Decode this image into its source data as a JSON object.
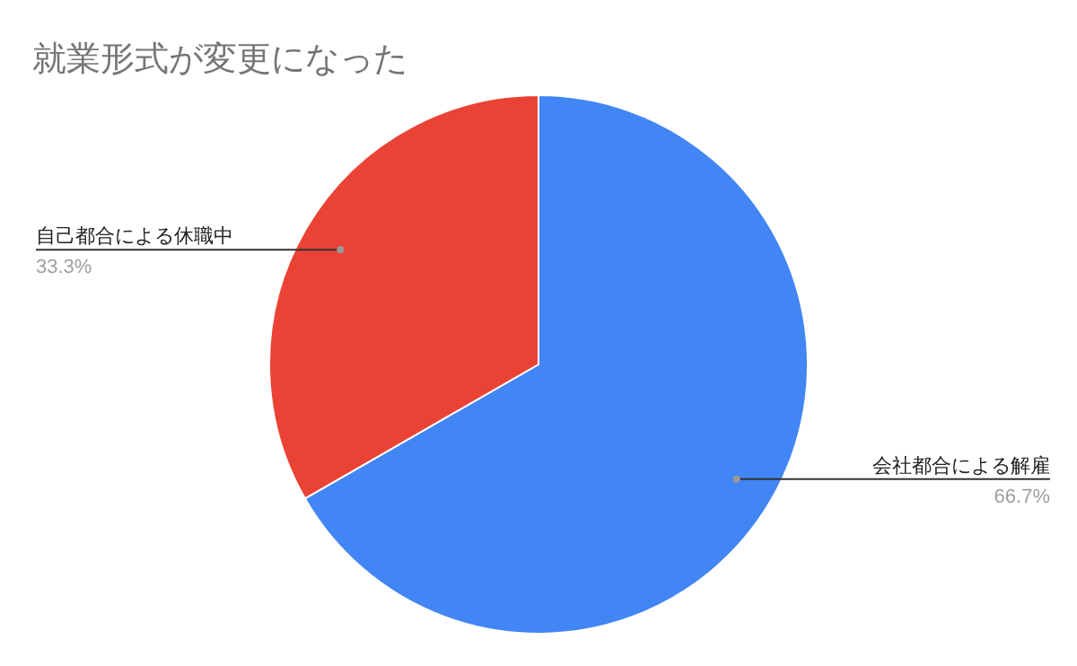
{
  "chart_data": {
    "type": "pie",
    "title": "就業形式が変更になった",
    "categories": [
      "会社都合による解雇",
      "自己都合による休職中"
    ],
    "values": [
      66.7,
      33.3
    ],
    "colors": [
      "#4285f4",
      "#ea4335"
    ],
    "value_labels": [
      "66.7%",
      "33.3%"
    ]
  }
}
